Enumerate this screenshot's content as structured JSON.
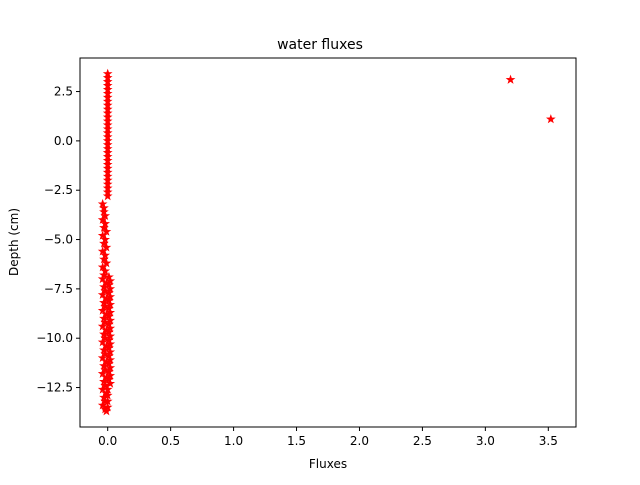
{
  "chart_data": {
    "type": "scatter",
    "title": "water fluxes",
    "xlabel": "Fluxes",
    "ylabel": "Depth (cm)",
    "xlim": [
      -0.22,
      3.72
    ],
    "ylim": [
      -14.5,
      4.2
    ],
    "xticks": [
      0.0,
      0.5,
      1.0,
      1.5,
      2.0,
      2.5,
      3.0,
      3.5
    ],
    "xtick_labels": [
      "0.0",
      "0.5",
      "1.0",
      "1.5",
      "2.0",
      "2.5",
      "3.0",
      "3.5"
    ],
    "yticks": [
      2.5,
      0.0,
      -2.5,
      -5.0,
      -7.5,
      -10.0,
      -12.5
    ],
    "ytick_labels": [
      "2.5",
      "0.0",
      "−2.5",
      "−5.0",
      "−7.5",
      "−10.0",
      "−12.5"
    ],
    "grid": false,
    "legend": "none",
    "marker": "star",
    "color": "#ff0000",
    "series": [
      {
        "points": [
          {
            "x": 0.0,
            "y": 3.4
          },
          {
            "x": 0.0,
            "y": 3.2
          },
          {
            "x": 0.0,
            "y": 3.0
          },
          {
            "x": 0.0,
            "y": 2.8
          },
          {
            "x": 0.0,
            "y": 2.6
          },
          {
            "x": 0.0,
            "y": 2.4
          },
          {
            "x": 0.0,
            "y": 2.2
          },
          {
            "x": 0.0,
            "y": 2.0
          },
          {
            "x": 0.0,
            "y": 1.8
          },
          {
            "x": 0.0,
            "y": 1.6
          },
          {
            "x": 0.0,
            "y": 1.4
          },
          {
            "x": 0.0,
            "y": 1.2
          },
          {
            "x": 0.0,
            "y": 1.0
          },
          {
            "x": 0.0,
            "y": 0.8
          },
          {
            "x": 0.0,
            "y": 0.6
          },
          {
            "x": 0.0,
            "y": 0.4
          },
          {
            "x": 0.0,
            "y": 0.2
          },
          {
            "x": 0.0,
            "y": 0.0
          },
          {
            "x": 0.0,
            "y": -0.2
          },
          {
            "x": 0.0,
            "y": -0.4
          },
          {
            "x": 0.0,
            "y": -0.6
          },
          {
            "x": 0.0,
            "y": -0.8
          },
          {
            "x": 0.0,
            "y": -1.0
          },
          {
            "x": 0.0,
            "y": -1.2
          },
          {
            "x": 0.0,
            "y": -1.4
          },
          {
            "x": 0.0,
            "y": -1.6
          },
          {
            "x": 0.0,
            "y": -1.8
          },
          {
            "x": 0.0,
            "y": -2.0
          },
          {
            "x": 0.0,
            "y": -2.2
          },
          {
            "x": 0.0,
            "y": -2.4
          },
          {
            "x": 0.0,
            "y": -2.6
          },
          {
            "x": 0.0,
            "y": -2.8
          },
          {
            "x": -0.04,
            "y": -3.2
          },
          {
            "x": -0.03,
            "y": -3.4
          },
          {
            "x": -0.03,
            "y": -3.6
          },
          {
            "x": -0.02,
            "y": -3.8
          },
          {
            "x": -0.04,
            "y": -4.0
          },
          {
            "x": -0.02,
            "y": -4.2
          },
          {
            "x": -0.03,
            "y": -4.4
          },
          {
            "x": -0.01,
            "y": -4.6
          },
          {
            "x": -0.04,
            "y": -4.8
          },
          {
            "x": -0.02,
            "y": -5.0
          },
          {
            "x": -0.03,
            "y": -5.2
          },
          {
            "x": -0.01,
            "y": -5.4
          },
          {
            "x": -0.04,
            "y": -5.6
          },
          {
            "x": -0.02,
            "y": -5.8
          },
          {
            "x": -0.03,
            "y": -6.0
          },
          {
            "x": -0.01,
            "y": -6.2
          },
          {
            "x": -0.04,
            "y": -6.4
          },
          {
            "x": -0.02,
            "y": -6.6
          },
          {
            "x": -0.03,
            "y": -6.8
          },
          {
            "x": -0.04,
            "y": -7.0
          },
          {
            "x": -0.01,
            "y": -7.2
          },
          {
            "x": -0.03,
            "y": -7.4
          },
          {
            "x": -0.02,
            "y": -7.6
          },
          {
            "x": -0.04,
            "y": -7.8
          },
          {
            "x": -0.01,
            "y": -8.0
          },
          {
            "x": -0.03,
            "y": -8.2
          },
          {
            "x": -0.02,
            "y": -8.4
          },
          {
            "x": -0.04,
            "y": -8.6
          },
          {
            "x": -0.01,
            "y": -8.8
          },
          {
            "x": -0.03,
            "y": -9.0
          },
          {
            "x": -0.02,
            "y": -9.2
          },
          {
            "x": -0.04,
            "y": -9.4
          },
          {
            "x": -0.01,
            "y": -9.6
          },
          {
            "x": -0.03,
            "y": -9.8
          },
          {
            "x": -0.02,
            "y": -10.0
          },
          {
            "x": -0.04,
            "y": -10.2
          },
          {
            "x": -0.01,
            "y": -10.4
          },
          {
            "x": -0.03,
            "y": -10.6
          },
          {
            "x": -0.02,
            "y": -10.8
          },
          {
            "x": -0.04,
            "y": -11.0
          },
          {
            "x": -0.01,
            "y": -11.2
          },
          {
            "x": -0.03,
            "y": -11.4
          },
          {
            "x": -0.02,
            "y": -11.6
          },
          {
            "x": -0.04,
            "y": -11.8
          },
          {
            "x": -0.01,
            "y": -12.0
          },
          {
            "x": -0.03,
            "y": -12.2
          },
          {
            "x": -0.02,
            "y": -12.4
          },
          {
            "x": -0.04,
            "y": -12.6
          },
          {
            "x": -0.01,
            "y": -12.8
          },
          {
            "x": -0.03,
            "y": -13.0
          },
          {
            "x": -0.02,
            "y": -13.2
          },
          {
            "x": -0.04,
            "y": -13.4
          },
          {
            "x": -0.02,
            "y": -13.6
          },
          {
            "x": -0.01,
            "y": -13.7
          },
          {
            "x": 0.01,
            "y": -6.9
          },
          {
            "x": 0.02,
            "y": -7.1
          },
          {
            "x": 0.01,
            "y": -7.3
          },
          {
            "x": 0.02,
            "y": -7.5
          },
          {
            "x": 0.01,
            "y": -7.7
          },
          {
            "x": 0.02,
            "y": -7.9
          },
          {
            "x": 0.01,
            "y": -8.1
          },
          {
            "x": 0.02,
            "y": -8.3
          },
          {
            "x": 0.01,
            "y": -8.5
          },
          {
            "x": 0.02,
            "y": -8.7
          },
          {
            "x": 0.01,
            "y": -8.9
          },
          {
            "x": 0.02,
            "y": -9.1
          },
          {
            "x": 0.01,
            "y": -9.3
          },
          {
            "x": 0.02,
            "y": -9.5
          },
          {
            "x": 0.01,
            "y": -9.7
          },
          {
            "x": 0.02,
            "y": -9.9
          },
          {
            "x": 0.01,
            "y": -10.1
          },
          {
            "x": 0.02,
            "y": -10.3
          },
          {
            "x": 0.01,
            "y": -10.5
          },
          {
            "x": 0.02,
            "y": -10.7
          },
          {
            "x": 0.01,
            "y": -10.9
          },
          {
            "x": 0.02,
            "y": -11.1
          },
          {
            "x": 0.01,
            "y": -11.3
          },
          {
            "x": 0.02,
            "y": -11.5
          },
          {
            "x": 0.01,
            "y": -11.7
          },
          {
            "x": 0.02,
            "y": -11.9
          },
          {
            "x": 0.01,
            "y": -12.1
          },
          {
            "x": 0.02,
            "y": -12.3
          },
          {
            "x": 0.0,
            "y": -12.6
          },
          {
            "x": 0.0,
            "y": -12.9
          },
          {
            "x": 0.0,
            "y": -13.2
          },
          {
            "x": 0.0,
            "y": -13.5
          },
          {
            "x": 3.2,
            "y": 3.1
          },
          {
            "x": 3.52,
            "y": 1.1
          }
        ]
      }
    ]
  }
}
